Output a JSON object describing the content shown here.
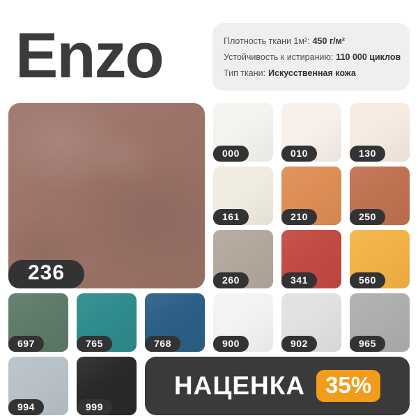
{
  "header": {
    "title": "Enzo",
    "title_color": "#3b3b3b",
    "specs_box_bg": "#efefef",
    "specs": [
      {
        "label": "Плотность ткани 1м²:",
        "value": "450 г/м²"
      },
      {
        "label": "Устойчивость к истиранию:",
        "value": "110 000 циклов"
      },
      {
        "label": "Тип ткани:",
        "value": "Искусственная кожа"
      }
    ]
  },
  "code_badge_bg": "#333333",
  "main_swatch": {
    "code": "236",
    "color": "#9c7368"
  },
  "swatches": [
    {
      "code": "000",
      "color": "#f5f3f0"
    },
    {
      "code": "010",
      "color": "#f8f0ea"
    },
    {
      "code": "130",
      "color": "#f6ebe1"
    },
    {
      "code": "161",
      "color": "#f0ecdf"
    },
    {
      "code": "210",
      "color": "#dd8e55"
    },
    {
      "code": "250",
      "color": "#bf7251"
    },
    {
      "code": "260",
      "color": "#b4a89d"
    },
    {
      "code": "341",
      "color": "#c24a42"
    },
    {
      "code": "560",
      "color": "#f3b246"
    },
    {
      "code": "697",
      "color": "#5e7a69"
    },
    {
      "code": "765",
      "color": "#2f8b8c"
    },
    {
      "code": "768",
      "color": "#2c5f86"
    },
    {
      "code": "900",
      "color": "#f3f3f4"
    },
    {
      "code": "902",
      "color": "#e1e1e3"
    },
    {
      "code": "965",
      "color": "#aeaeae"
    },
    {
      "code": "994",
      "color": "#b8c1c8"
    },
    {
      "code": "999",
      "color": "#28292a"
    }
  ],
  "promo": {
    "label": "НАЦЕНКА",
    "badge": "35%",
    "banner_bg": "#3a3a3b",
    "badge_bg": "#f19c1a"
  }
}
